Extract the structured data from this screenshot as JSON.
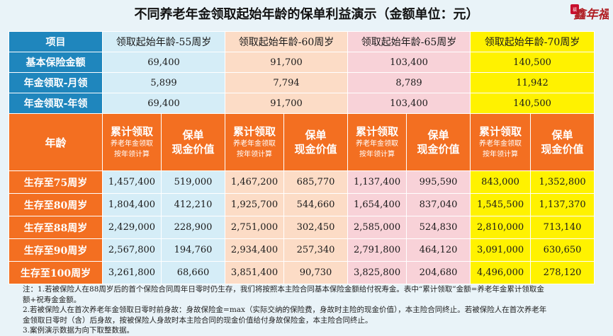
{
  "title": "不同养老年金领取起始年龄的保单利益演示（金额单位：元）",
  "logo": {
    "text": "鑫年福",
    "icon": "seal-logo-icon"
  },
  "colors": {
    "blue": "#1f86bd",
    "orange": "#f36f21",
    "yellow": "#fff200"
  },
  "header": {
    "item": "项目",
    "columns": [
      "领取起始年龄-55周岁",
      "领取起始年龄-60周岁",
      "领取起始年龄-65周岁",
      "领取起始年龄-70周岁"
    ]
  },
  "rows": [
    {
      "label": "基本保险金额",
      "values": [
        "69,400",
        "91,700",
        "103,400",
        "140,500"
      ]
    },
    {
      "label": "年金领取-月领",
      "values": [
        "5,899",
        "7,794",
        "8,789",
        "11,942"
      ]
    },
    {
      "label": "年金领取-年领",
      "values": [
        "69,400",
        "91,700",
        "103,400",
        "140,500"
      ]
    }
  ],
  "subheader": {
    "age": "年龄",
    "cum_title": "累计领取",
    "cum_note1": "养老年金领取",
    "cum_note2": "按年领计算",
    "cash_title1": "保单",
    "cash_title2": "现金价值"
  },
  "data_rows": [
    {
      "label": "生存至75周岁",
      "values": [
        "1,457,400",
        "519,000",
        "1,467,200",
        "685,770",
        "1,137,400",
        "995,590",
        "843,000",
        "1,352,800"
      ]
    },
    {
      "label": "生存至80周岁",
      "values": [
        "1,804,400",
        "412,210",
        "1,925,700",
        "544,660",
        "1,654,400",
        "837,040",
        "1,545,500",
        "1,137,370"
      ]
    },
    {
      "label": "生存至88周岁",
      "values": [
        "2,429,000",
        "228,900",
        "2,751,000",
        "302,450",
        "2,585,000",
        "524,830",
        "2,810,000",
        "713,140"
      ]
    },
    {
      "label": "生存至90周岁",
      "values": [
        "2,567,800",
        "194,760",
        "2,934,400",
        "257,340",
        "2,791,800",
        "464,120",
        "3,091,000",
        "630,650"
      ]
    },
    {
      "label": "生存至100周岁",
      "values": [
        "3,261,800",
        "68,660",
        "3,851,400",
        "90,730",
        "3,825,800",
        "204,680",
        "4,496,000",
        "278,120"
      ]
    }
  ],
  "notes": [
    "注：1.若被保险人在88周岁后的首个保险合同周年日零时仍生存，我们将按照本主险合同基本保险金额给付祝寿金。表中“累计领取”金额=养老年金累计领取金",
    "额+祝寿金金额。",
    "2.若被保险人在首次养老年金领取日零时前身故：身故保险金=max（实际交纳的保险费，身故时主险的现金价值），本主险合同终止。若被保险人在首次养老年",
    "金领取日零时（含）后身故，按被保险人身故时本主险合同的现金价值给付身故保险金，本主险合同终止。",
    "3.案例演示数据为向下取整数据。"
  ]
}
